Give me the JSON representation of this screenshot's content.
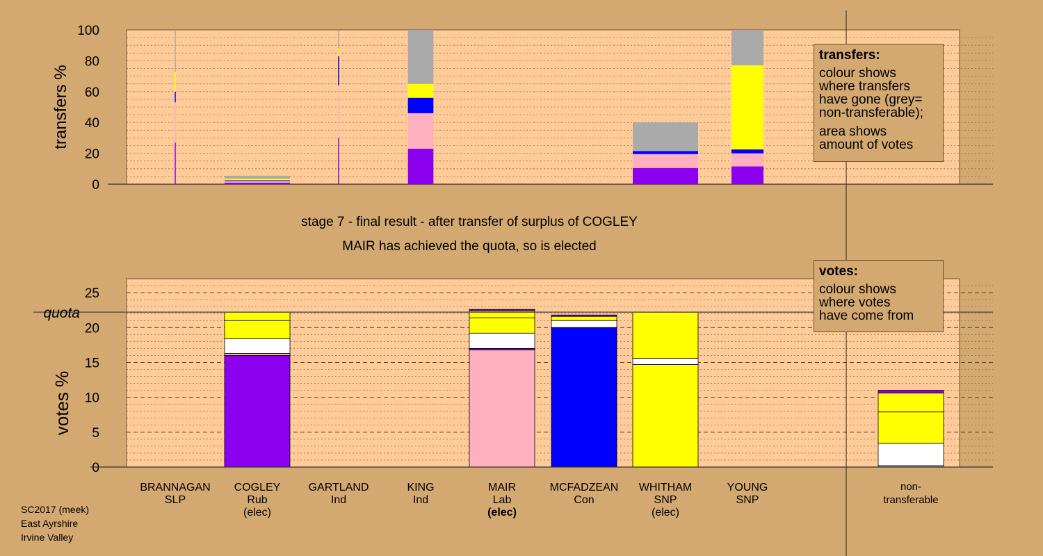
{
  "colors": {
    "background": "#D3A971",
    "plot_area": "#FFCC99",
    "Rub": "#8B00EE",
    "Lab": "#FFB0C0",
    "Con": "#0000FF",
    "SNP": "#FFFF00",
    "Ind": "#FFFFFF",
    "nontransferable": "#AAAAAA"
  },
  "headline": "stage 7 - final result - after transfer of surplus of COGLEY",
  "subheadline": "MAIR has achieved the quota, so is elected",
  "footer": {
    "lines": [
      "SC2017 (meek)",
      "East Ayrshire",
      "Irvine Valley"
    ]
  },
  "legend_transfers": {
    "title": "transfers:",
    "lines": [
      "colour shows",
      "where transfers",
      "have gone (grey=",
      "non-transferable);"
    ],
    "lines2": [
      "area shows",
      "amount of votes"
    ]
  },
  "legend_votes": {
    "title": "votes:",
    "lines": [
      "colour shows",
      "where votes",
      "have come from"
    ]
  },
  "chart_data": [
    {
      "type": "bar",
      "ylabel": "transfers %",
      "ylim": [
        0,
        100
      ],
      "yticks": [
        0,
        20,
        40,
        60,
        80,
        100
      ],
      "grid": true,
      "categories": [
        "BRANNAGAN",
        "COGLEY",
        "GARTLAND",
        "KING",
        "MAIR",
        "MCFADZEAN",
        "WHITHAM",
        "YOUNG"
      ],
      "bars": [
        {
          "candidate": "BRANNAGAN",
          "width_share": 0.005,
          "segments": [
            {
              "party": "Rub",
              "value": 27
            },
            {
              "party": "Lab",
              "value": 26
            },
            {
              "party": "Con",
              "value": 7
            },
            {
              "party": "SNP",
              "value": 13
            },
            {
              "party": "nontransferable",
              "value": 27
            }
          ]
        },
        {
          "candidate": "COGLEY",
          "width_share": 1,
          "segments": [
            {
              "party": "Rub",
              "value": 1
            },
            {
              "party": "Lab",
              "value": 1
            },
            {
              "party": "Con",
              "value": 0.5
            },
            {
              "party": "SNP",
              "value": 1
            },
            {
              "party": "nontransferable",
              "value": 2
            }
          ]
        },
        {
          "candidate": "GARTLAND",
          "width_share": 0.01,
          "segments": [
            {
              "party": "Rub",
              "value": 30
            },
            {
              "party": "Lab",
              "value": 34
            },
            {
              "party": "Con",
              "value": 19
            },
            {
              "party": "SNP",
              "value": 5
            },
            {
              "party": "nontransferable",
              "value": 12
            }
          ]
        },
        {
          "candidate": "KING",
          "width_share": 0.39,
          "segments": [
            {
              "party": "Rub",
              "value": 23
            },
            {
              "party": "Lab",
              "value": 23
            },
            {
              "party": "Con",
              "value": 10
            },
            {
              "party": "SNP",
              "value": 9
            },
            {
              "party": "nontransferable",
              "value": 35
            }
          ]
        },
        {
          "candidate": "WHITHAM",
          "width_share": 1,
          "segments": [
            {
              "party": "Rub",
              "value": 10.5
            },
            {
              "party": "Lab",
              "value": 9
            },
            {
              "party": "Con",
              "value": 2
            },
            {
              "party": "nontransferable",
              "value": 18.5
            }
          ]
        },
        {
          "candidate": "YOUNG",
          "width_share": 0.49,
          "segments": [
            {
              "party": "Rub",
              "value": 11.5
            },
            {
              "party": "Lab",
              "value": 8.5
            },
            {
              "party": "Con",
              "value": 2.5
            },
            {
              "party": "SNP",
              "value": 54.5
            },
            {
              "party": "nontransferable",
              "value": 23
            }
          ]
        }
      ]
    },
    {
      "type": "bar",
      "ylabel": "votes %",
      "ylim": [
        0,
        27
      ],
      "yticks": [
        0,
        5,
        10,
        15,
        20,
        25
      ],
      "grid": true,
      "quota": 22.2,
      "quota_label": "quota",
      "categories": [
        {
          "name": "BRANNAGAN",
          "party": "SLP",
          "status": ""
        },
        {
          "name": "COGLEY",
          "party": "Rub",
          "status": "(elec)"
        },
        {
          "name": "GARTLAND",
          "party": "Ind",
          "status": ""
        },
        {
          "name": "KING",
          "party": "Ind",
          "status": ""
        },
        {
          "name": "MAIR",
          "party": "Lab",
          "status": "(elec)"
        },
        {
          "name": "MCFADZEAN",
          "party": "Con",
          "status": ""
        },
        {
          "name": "WHITHAM",
          "party": "SNP",
          "status": "(elec)"
        },
        {
          "name": "YOUNG",
          "party": "SNP",
          "status": ""
        }
      ],
      "extra_category": {
        "line1": "non-",
        "line2": "transferable"
      },
      "bars": [
        {
          "candidate": "COGLEY",
          "segments": [
            {
              "party": "Rub",
              "value": 16.0
            },
            {
              "party": "Lab",
              "value": 0.3
            },
            {
              "party": "Ind",
              "value": 2.1
            },
            {
              "party": "SNP",
              "value": 2.6
            },
            {
              "party": "SNP",
              "value": 1.2
            }
          ]
        },
        {
          "candidate": "MAIR",
          "segments": [
            {
              "party": "Lab",
              "value": 16.8
            },
            {
              "party": "Rub",
              "value": 0.2
            },
            {
              "party": "Ind",
              "value": 2.2
            },
            {
              "party": "SNP",
              "value": 2.2
            },
            {
              "party": "SNP",
              "value": 1.0
            },
            {
              "party": "Rub",
              "value": 0.2
            }
          ]
        },
        {
          "candidate": "MCFADZEAN",
          "segments": [
            {
              "party": "Con",
              "value": 20.0
            },
            {
              "party": "Ind",
              "value": 1.0
            },
            {
              "party": "SNP",
              "value": 0.6
            },
            {
              "party": "Rub",
              "value": 0.2
            }
          ]
        },
        {
          "candidate": "WHITHAM",
          "segments": [
            {
              "party": "SNP",
              "value": 14.7
            },
            {
              "party": "Ind",
              "value": 0.9
            },
            {
              "party": "SNP",
              "value": 6.6
            }
          ]
        },
        {
          "candidate": "non-transferable",
          "segments": [
            {
              "party": "nontransferable",
              "value": 0.2
            },
            {
              "party": "Ind",
              "value": 3.2
            },
            {
              "party": "SNP",
              "value": 4.5
            },
            {
              "party": "SNP",
              "value": 2.7
            },
            {
              "party": "Rub",
              "value": 0.4
            }
          ]
        }
      ]
    }
  ]
}
